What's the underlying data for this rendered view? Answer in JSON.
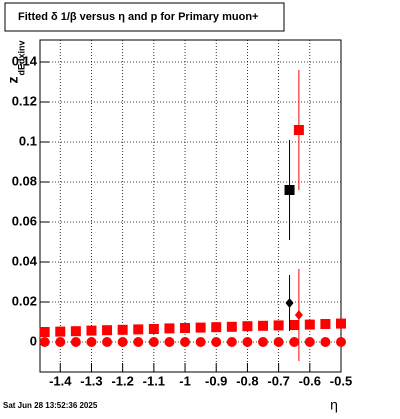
{
  "chart_data": {
    "type": "scatter",
    "title": "Fitted δ 1/β versus η and p for Primary muon+",
    "ylabel": "z",
    "ylabel_sub": "dEdxinv",
    "xlabel": "η",
    "footer": "Sat Jun 28 13:52:36 2025",
    "grid": true,
    "xlim": [
      -1.465,
      -0.5
    ],
    "ylim": [
      -0.015,
      0.151
    ],
    "xticks": [
      -1.4,
      -1.3,
      -1.2,
      -1.1,
      -1,
      -0.9,
      -0.8,
      -0.7,
      -0.6,
      -0.5
    ],
    "yticks": [
      0,
      0.02,
      0.04,
      0.06,
      0.08,
      0.1,
      0.12,
      0.14
    ],
    "series": [
      {
        "color": "#ff0000",
        "marker": "square",
        "x": [
          -1.45,
          -1.4,
          -1.35,
          -1.3,
          -1.25,
          -1.2,
          -1.15,
          -1.1,
          -1.05,
          -1,
          -0.95,
          -0.9,
          -0.85,
          -0.8,
          -0.75,
          -0.7,
          -0.65,
          -0.6,
          -0.55,
          -0.5
        ],
        "values": [
          0.005,
          0.0052,
          0.0054,
          0.0057,
          0.0059,
          0.0061,
          0.0063,
          0.0065,
          0.0068,
          0.007,
          0.0072,
          0.0074,
          0.0076,
          0.0079,
          0.0081,
          0.0083,
          0.0085,
          0.0087,
          0.009,
          0.0092
        ]
      },
      {
        "color": "#ff0000",
        "marker": "circle",
        "x": [
          -1.45,
          -1.4,
          -1.35,
          -1.3,
          -1.25,
          -1.2,
          -1.15,
          -1.1,
          -1.05,
          -1,
          -0.95,
          -0.9,
          -0.85,
          -0.8,
          -0.75,
          -0.7,
          -0.65,
          -0.6,
          -0.55,
          -0.5
        ],
        "values": [
          0,
          0,
          0,
          0,
          0,
          0,
          0,
          0,
          0,
          0,
          0,
          0,
          0,
          0,
          0,
          0,
          0,
          0,
          0,
          0
        ]
      },
      {
        "color": "#000000",
        "marker": "square",
        "x": [
          -0.665
        ],
        "values": [
          0.076
        ],
        "errors": [
          0.025
        ]
      },
      {
        "color": "#ff0000",
        "marker": "square",
        "x": [
          -0.635
        ],
        "values": [
          0.106
        ],
        "errors": [
          0.03
        ]
      },
      {
        "color": "#000000",
        "marker": "diamond",
        "x": [
          -0.665
        ],
        "values": [
          0.0195
        ],
        "errors": [
          0.014
        ]
      },
      {
        "color": "#ff0000",
        "marker": "diamond",
        "x": [
          -0.635
        ],
        "values": [
          0.0135
        ],
        "errors": [
          0.023
        ]
      }
    ]
  }
}
